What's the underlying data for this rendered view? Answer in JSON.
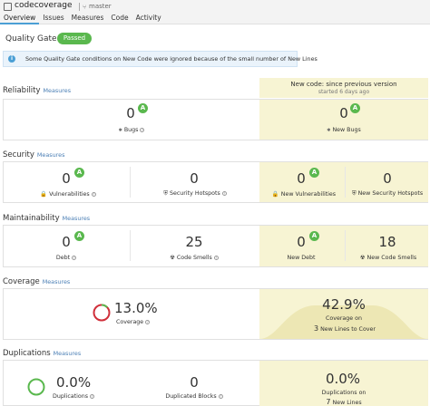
{
  "header": {
    "project": "codecoverage",
    "branch": "master",
    "tabs": [
      "Overview",
      "Issues",
      "Measures",
      "Code",
      "Activity"
    ]
  },
  "quality_gate": {
    "label": "Quality Gate",
    "status": "Passed",
    "status_color": "#5ab84e"
  },
  "info_banner": {
    "text": "Some Quality Gate conditions on New Code were ignored because of the small number of New Lines"
  },
  "new_code": {
    "title": "New code: since previous version",
    "started": "started 6 days ago"
  },
  "reliability": {
    "title": "Reliability",
    "measures_link": "Measures",
    "started": "started 6 days ago",
    "bugs_value": "0",
    "bugs_label": "Bugs",
    "bugs_rating": "A",
    "new_bugs_value": "0",
    "new_bugs_label": "New Bugs",
    "new_bugs_rating": "A"
  },
  "security": {
    "title": "Security",
    "measures_link": "Measures",
    "vuln_value": "0",
    "vuln_label": "Vulnerabilities",
    "vuln_rating": "A",
    "hotspots_value": "0",
    "hotspots_label": "Security Hotspots",
    "new_vuln_value": "0",
    "new_vuln_label": "New Vulnerabilities",
    "new_vuln_rating": "A",
    "new_hotspots_value": "0",
    "new_hotspots_label": "New Security Hotspots"
  },
  "maintainability": {
    "title": "Maintainability",
    "measures_link": "Measures",
    "debt_value": "0",
    "debt_label": "Debt",
    "debt_rating": "A",
    "smells_value": "25",
    "smells_label": "Code Smells",
    "new_debt_value": "0",
    "new_debt_label": "New Debt",
    "new_debt_rating": "A",
    "new_smells_value": "18",
    "new_smells_label": "New Code Smells"
  },
  "coverage": {
    "title": "Coverage",
    "measures_link": "Measures",
    "value": "13.0%",
    "label": "Coverage",
    "fraction": 0.13,
    "new_value": "42.9%",
    "new_label_1": "Coverage on",
    "new_lines_count": "3",
    "new_label_2": "New Lines to Cover"
  },
  "duplications": {
    "title": "Duplications",
    "measures_link": "Measures",
    "value": "0.0%",
    "label": "Duplications",
    "blocks_value": "0",
    "blocks_label": "Duplicated Blocks",
    "new_value": "0.0%",
    "new_label_1": "Duplications on",
    "new_lines_count": "7",
    "new_label_2": "New Lines"
  },
  "colors": {
    "rating_a": "#5ab84e",
    "donut_red": "#d02f3a",
    "donut_green": "#5ab84e",
    "new_code_bg": "#f7f4d3",
    "link": "#4b7fb5"
  }
}
